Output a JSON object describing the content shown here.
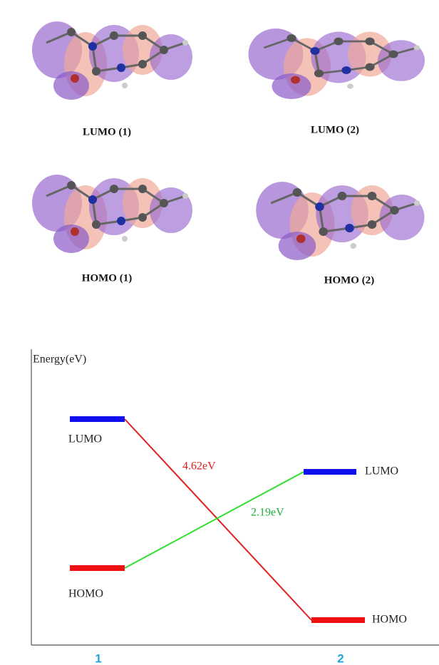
{
  "orbitals": {
    "lumo_1": "LUMO (1)",
    "lumo_2": "LUMO (2)",
    "homo_1": "HOMO (1)",
    "homo_2": "HOMO (2)"
  },
  "diagram": {
    "axis_label": "Energy(eV)",
    "levels": [
      {
        "lumo": "LUMO",
        "homo": "HOMO",
        "x_label": "1",
        "gap": "4.62eV"
      },
      {
        "lumo": "LUMO",
        "homo": "HOMO",
        "x_label": "2",
        "gap": "2.19eV"
      }
    ]
  }
}
